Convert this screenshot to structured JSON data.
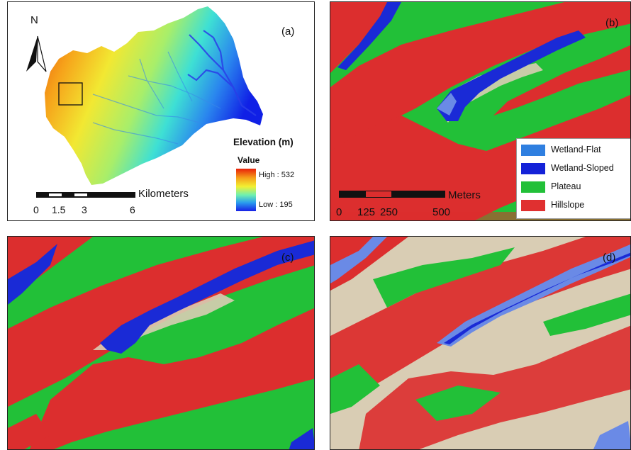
{
  "panel_a": {
    "label": "(a)",
    "north": "N",
    "legend_title": "Elevation (m)",
    "value_label": "Value",
    "high_label": "High : 532",
    "low_label": "Low : 195",
    "scale_unit": "Kilometers",
    "scale_ticks": [
      "0",
      "1.5",
      "3",
      "6"
    ]
  },
  "panel_b": {
    "label": "(b)",
    "scale_unit": "Meters",
    "scale_ticks": [
      "0",
      "125",
      "250",
      "500"
    ],
    "legend": [
      {
        "label": "Wetland-Flat",
        "color": "#2f7fe0"
      },
      {
        "label": "Wetland-Sloped",
        "color": "#1422d8"
      },
      {
        "label": "Plateau",
        "color": "#22c038"
      },
      {
        "label": "Hillslope",
        "color": "#e03030"
      }
    ]
  },
  "panel_c": {
    "label": "(c)"
  },
  "panel_d": {
    "label": "(d)"
  },
  "colors": {
    "hillslope": "#dc2e2e",
    "plateau": "#25c03a",
    "wetland_sloped": "#1a2ad6",
    "wetland_flat": "#6a8ae6",
    "transition": "#d9cdb4"
  }
}
